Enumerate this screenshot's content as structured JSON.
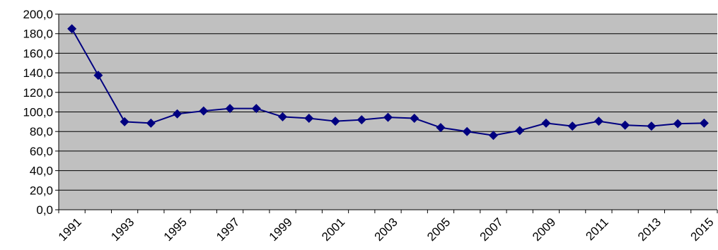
{
  "chart_data": {
    "type": "line",
    "title": "",
    "xlabel": "",
    "ylabel": "",
    "ylim": [
      0,
      200
    ],
    "y_ticks": [
      "0,0",
      "20,0",
      "40,0",
      "60,0",
      "80,0",
      "100,0",
      "120,0",
      "140,0",
      "160,0",
      "180,0",
      "200,0"
    ],
    "x_tick_labels": [
      "1991",
      "1993",
      "1995",
      "1997",
      "1999",
      "2001",
      "2003",
      "2005",
      "2007",
      "2009",
      "2011",
      "2013",
      "2015"
    ],
    "categories": [
      "1991",
      "1992",
      "1993",
      "1994",
      "1995",
      "1996",
      "1997",
      "1998",
      "1999",
      "2000",
      "2001",
      "2002",
      "2003",
      "2004",
      "2005",
      "2006",
      "2007",
      "2008",
      "2009",
      "2010",
      "2011",
      "2012",
      "2013",
      "2014",
      "2015"
    ],
    "series": [
      {
        "values": [
          185.0,
          137.5,
          90.0,
          88.5,
          98.0,
          101.0,
          103.5,
          103.5,
          95.0,
          93.5,
          90.5,
          92.0,
          94.5,
          93.5,
          84.0,
          80.0,
          76.0,
          81.0,
          88.5,
          85.5,
          90.5,
          86.5,
          85.5,
          88.0,
          88.5
        ]
      }
    ],
    "grid": true,
    "legend": "none",
    "colors": {
      "plot_background": "#c0c0c0",
      "series": "#000080",
      "gridline": "#000000"
    }
  }
}
